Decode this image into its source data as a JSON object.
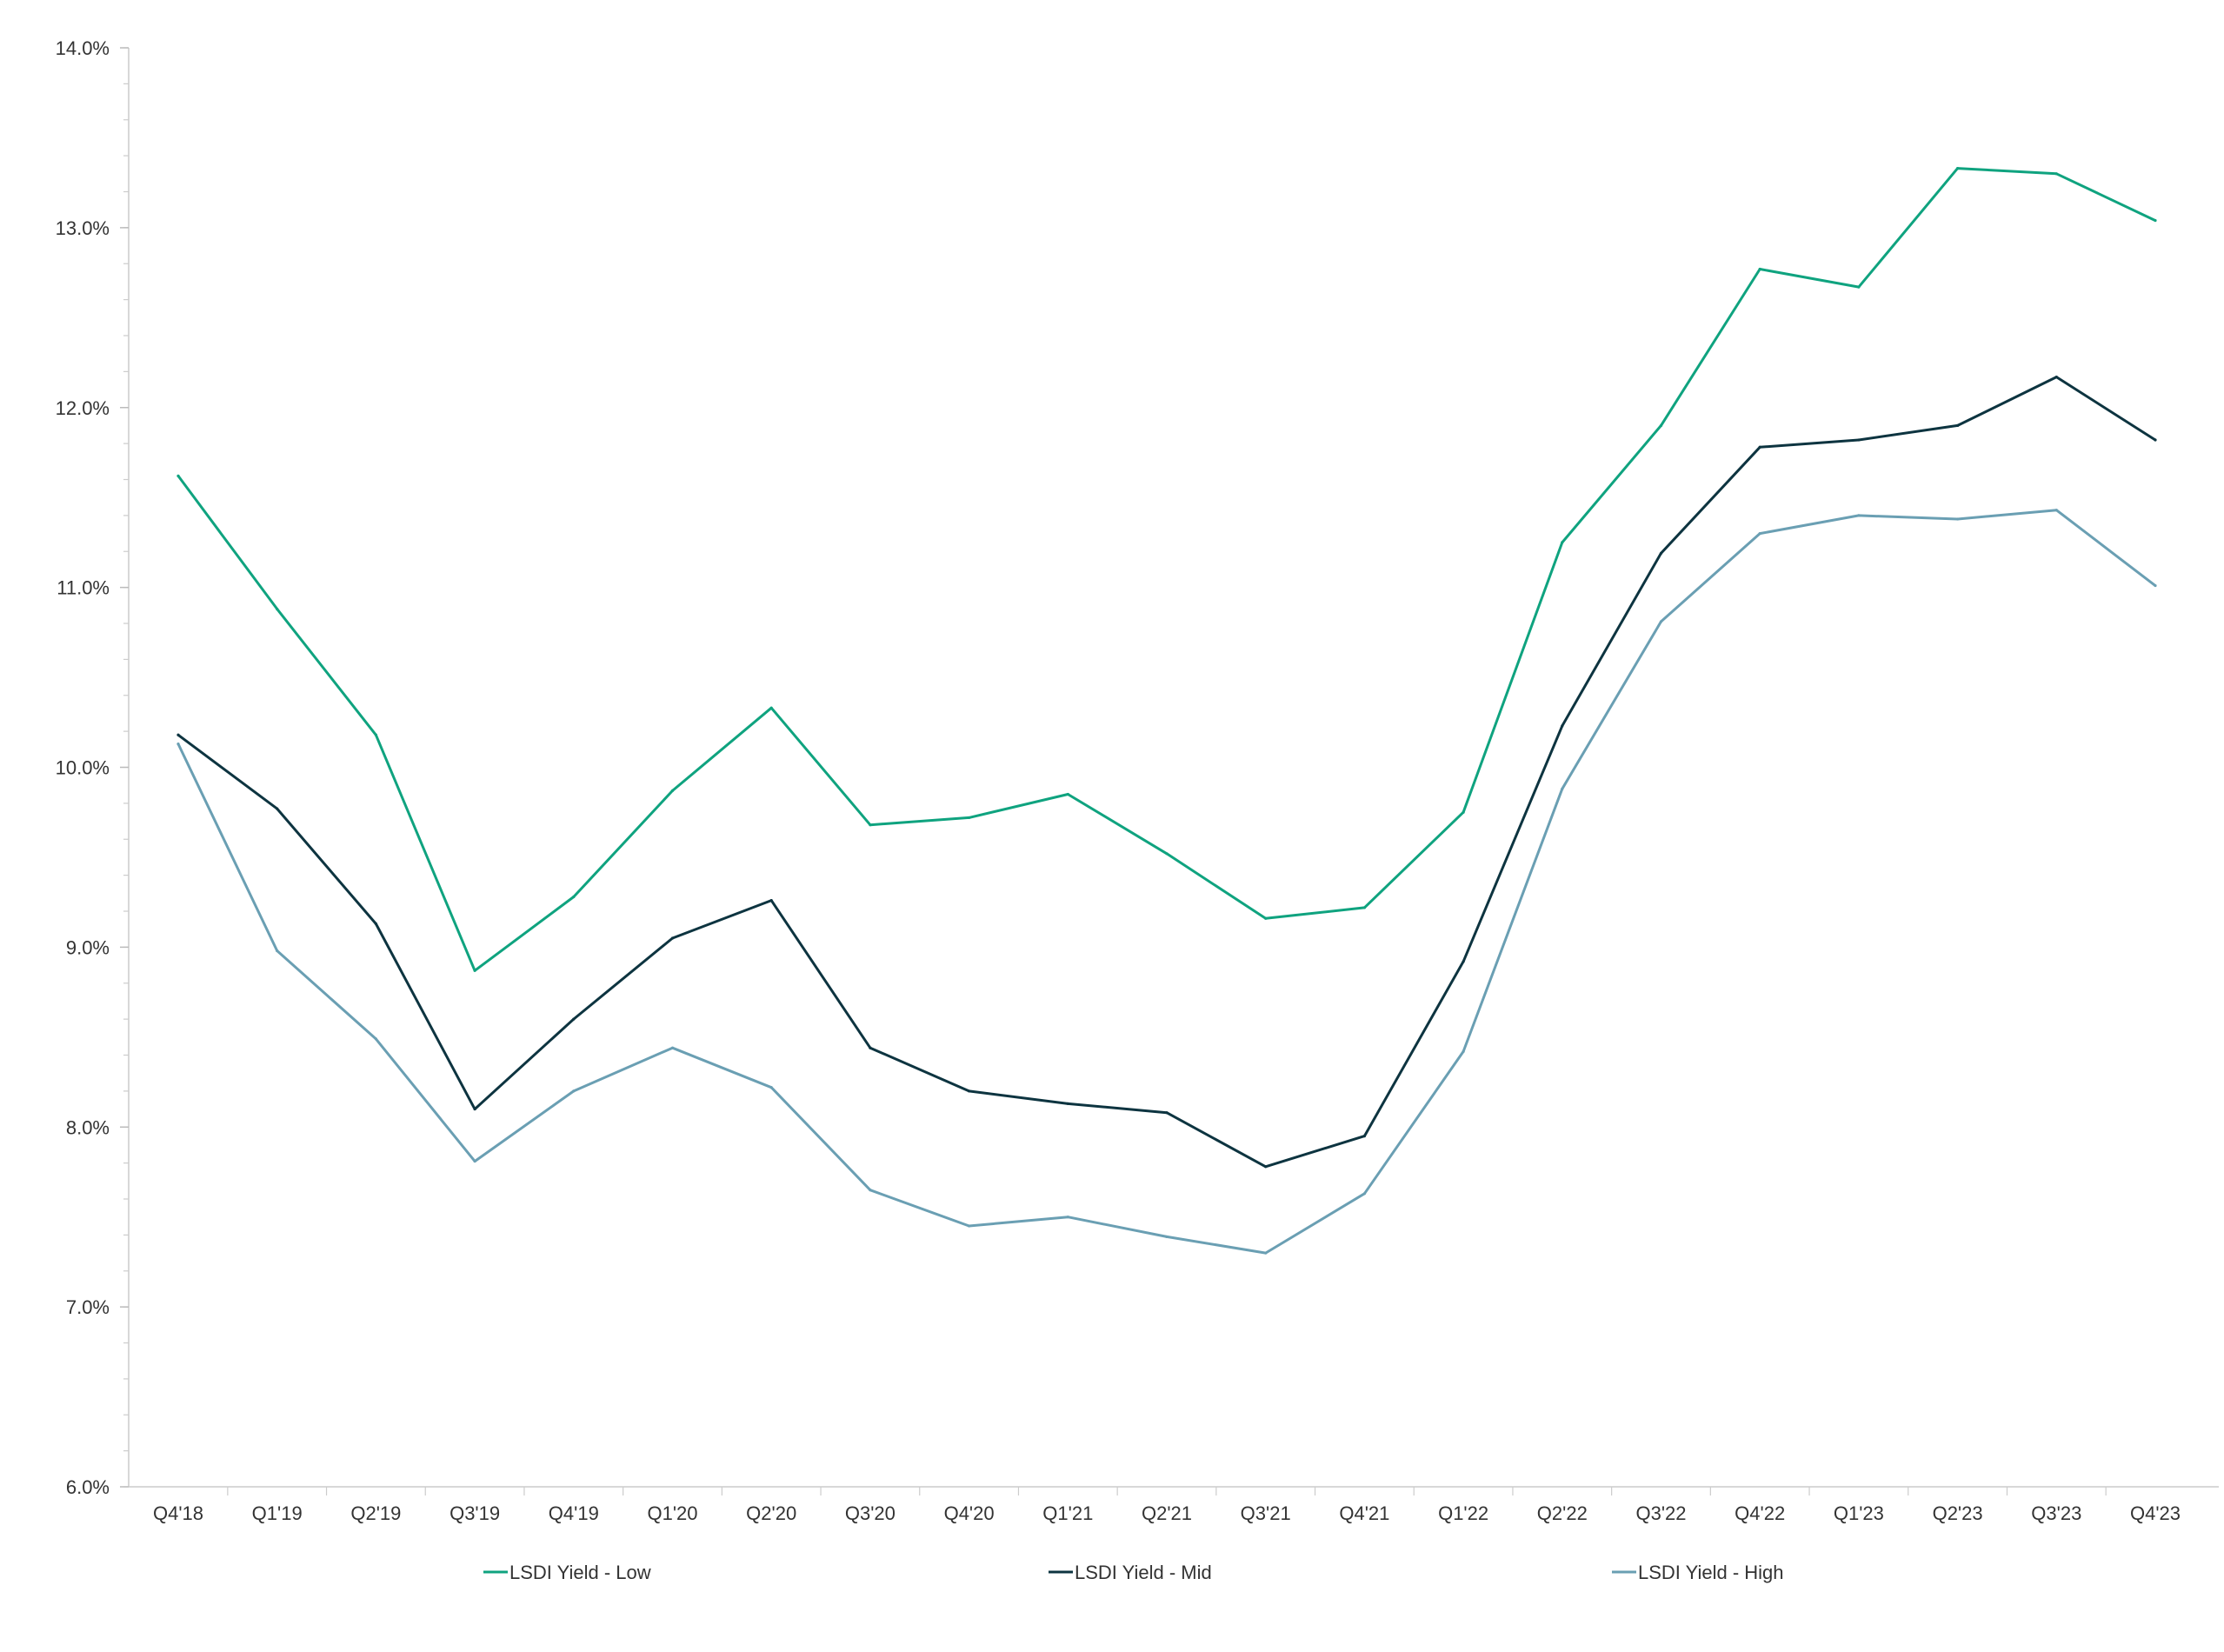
{
  "chart_data": {
    "type": "line",
    "title": "",
    "xlabel": "",
    "ylabel": "",
    "ylim": [
      6.0,
      14.0
    ],
    "y_ticks": [
      "6.0%",
      "7.0%",
      "8.0%",
      "9.0%",
      "10.0%",
      "11.0%",
      "12.0%",
      "13.0%",
      "14.0%"
    ],
    "y_minor_step": 0.2,
    "grid": false,
    "legend_position": "bottom",
    "categories": [
      "Q4'18",
      "Q1'19",
      "Q2'19",
      "Q3'19",
      "Q4'19",
      "Q1'20",
      "Q2'20",
      "Q3'20",
      "Q4'20",
      "Q1'21",
      "Q2'21",
      "Q3'21",
      "Q4'21",
      "Q1'22",
      "Q2'22",
      "Q3'22",
      "Q4'22",
      "Q1'23",
      "Q2'23",
      "Q3'23",
      "Q4'23"
    ],
    "series": [
      {
        "name": "LSDI Yield - Low",
        "color": "#0fa37f",
        "values": [
          11.62,
          10.88,
          10.18,
          8.87,
          9.28,
          9.87,
          10.33,
          9.68,
          9.72,
          9.85,
          9.52,
          9.16,
          9.22,
          9.75,
          11.25,
          11.9,
          12.77,
          12.67,
          13.33,
          13.3,
          13.04
        ]
      },
      {
        "name": "LSDI Yield - Mid",
        "color": "#0d3440",
        "values": [
          10.18,
          9.77,
          9.13,
          8.1,
          8.6,
          9.05,
          9.26,
          8.44,
          8.2,
          8.13,
          8.08,
          7.78,
          7.95,
          8.92,
          10.23,
          11.19,
          11.78,
          11.82,
          11.9,
          12.17,
          11.82
        ]
      },
      {
        "name": "LSDI Yield - High",
        "color": "#6a9fb3",
        "values": [
          10.13,
          8.98,
          8.49,
          7.81,
          8.2,
          8.44,
          8.22,
          7.65,
          7.45,
          7.5,
          7.39,
          7.3,
          7.63,
          8.42,
          9.88,
          10.81,
          11.3,
          11.4,
          11.38,
          11.43,
          11.01
        ]
      }
    ]
  }
}
